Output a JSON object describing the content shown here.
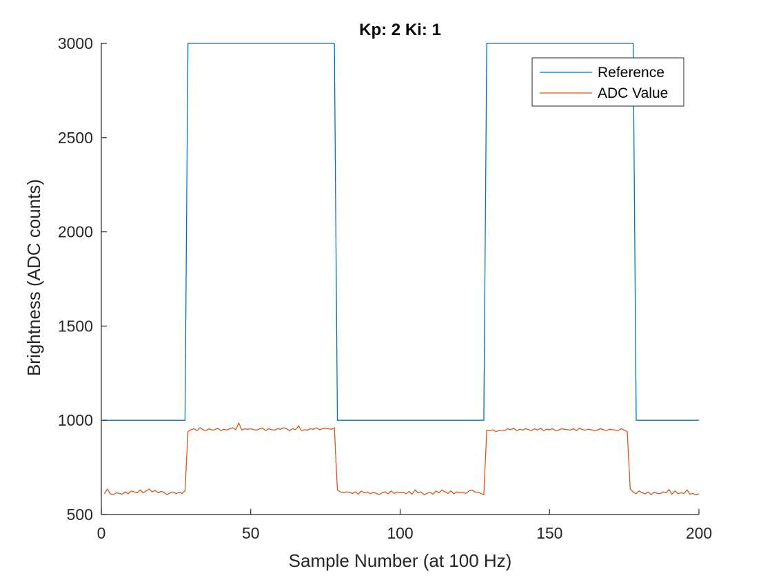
{
  "chart_data": {
    "type": "line",
    "title": "Kp: 2  Ki: 1",
    "xlabel": "Sample Number (at 100 Hz)",
    "ylabel": "Brightness (ADC counts)",
    "xlim": [
      0,
      200
    ],
    "ylim": [
      500,
      3000
    ],
    "xticks": [
      0,
      50,
      100,
      150,
      200
    ],
    "yticks": [
      500,
      1000,
      1500,
      2000,
      2500,
      3000
    ],
    "grid": false,
    "legend_position": "top-right",
    "series": [
      {
        "name": "Reference",
        "color": "#0072BD",
        "x": [
          1,
          28,
          29,
          78,
          79,
          128,
          129,
          178,
          179,
          200
        ],
        "y": [
          1000,
          1000,
          3000,
          3000,
          1000,
          1000,
          3000,
          3000,
          1000,
          1000
        ]
      },
      {
        "name": "ADC Value",
        "color": "#D95319",
        "x": [
          1,
          2,
          3,
          4,
          5,
          6,
          7,
          8,
          9,
          10,
          11,
          12,
          13,
          14,
          15,
          16,
          17,
          18,
          19,
          20,
          21,
          22,
          23,
          24,
          25,
          26,
          27,
          28,
          29,
          30,
          31,
          32,
          33,
          34,
          35,
          36,
          37,
          38,
          39,
          40,
          41,
          42,
          43,
          44,
          45,
          46,
          47,
          48,
          49,
          50,
          51,
          52,
          53,
          54,
          55,
          56,
          57,
          58,
          59,
          60,
          61,
          62,
          63,
          64,
          65,
          66,
          67,
          68,
          69,
          70,
          71,
          72,
          73,
          74,
          75,
          76,
          77,
          78,
          79,
          80,
          81,
          82,
          83,
          84,
          85,
          86,
          87,
          88,
          89,
          90,
          91,
          92,
          93,
          94,
          95,
          96,
          97,
          98,
          99,
          100,
          101,
          102,
          103,
          104,
          105,
          106,
          107,
          108,
          109,
          110,
          111,
          112,
          113,
          114,
          115,
          116,
          117,
          118,
          119,
          120,
          121,
          122,
          123,
          124,
          125,
          126,
          127,
          128,
          129,
          130,
          131,
          132,
          133,
          134,
          135,
          136,
          137,
          138,
          139,
          140,
          141,
          142,
          143,
          144,
          145,
          146,
          147,
          148,
          149,
          150,
          151,
          152,
          153,
          154,
          155,
          156,
          157,
          158,
          159,
          160,
          161,
          162,
          163,
          164,
          165,
          166,
          167,
          168,
          169,
          170,
          171,
          172,
          173,
          174,
          175,
          176,
          177,
          178,
          179,
          180,
          181,
          182,
          183,
          184,
          185,
          186,
          187,
          188,
          189,
          190,
          191,
          192,
          193,
          194,
          195,
          196,
          197,
          198,
          199,
          200
        ],
        "y": [
          610,
          635,
          610,
          605,
          615,
          612,
          608,
          620,
          610,
          625,
          620,
          615,
          630,
          615,
          625,
          635,
          620,
          628,
          615,
          622,
          618,
          605,
          615,
          620,
          610,
          618,
          612,
          625,
          940,
          950,
          955,
          945,
          960,
          950,
          945,
          955,
          948,
          950,
          958,
          945,
          952,
          948,
          955,
          960,
          950,
          985,
          948,
          955,
          952,
          955,
          950,
          948,
          955,
          958,
          945,
          955,
          950,
          948,
          955,
          952,
          960,
          955,
          945,
          955,
          950,
          970,
          945,
          950,
          948,
          955,
          952,
          960,
          950,
          955,
          958,
          955,
          952,
          960,
          630,
          620,
          615,
          620,
          618,
          612,
          620,
          608,
          625,
          615,
          620,
          610,
          618,
          612,
          605,
          615,
          620,
          610,
          625,
          612,
          620,
          615,
          618,
          610,
          622,
          608,
          630,
          615,
          620,
          605,
          612,
          618,
          608,
          625,
          615,
          630,
          620,
          612,
          625,
          610,
          620,
          615,
          618,
          612,
          625,
          630,
          620,
          618,
          612,
          605,
          948,
          945,
          950,
          940,
          945,
          948,
          945,
          955,
          950,
          958,
          945,
          952,
          948,
          955,
          950,
          945,
          955,
          948,
          958,
          945,
          952,
          950,
          955,
          945,
          948,
          955,
          952,
          950,
          948,
          955,
          945,
          958,
          950,
          948,
          952,
          950,
          945,
          948,
          955,
          950,
          945,
          952,
          950,
          948,
          945,
          955,
          948,
          940,
          635,
          620,
          610,
          625,
          615,
          610,
          620,
          605,
          618,
          612,
          610,
          620,
          615,
          632,
          608,
          625,
          610,
          615,
          612,
          630,
          608,
          612,
          605,
          610
        ]
      }
    ]
  }
}
